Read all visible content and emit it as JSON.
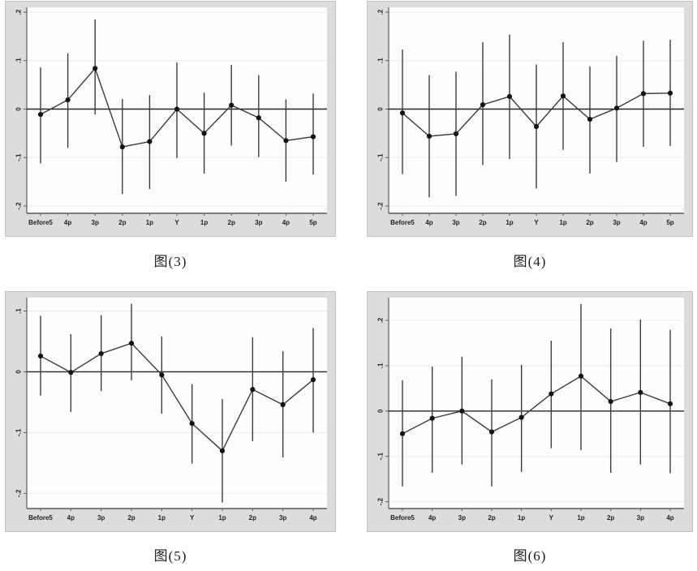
{
  "colors": {
    "panel_bg": "#dcdcdc",
    "plot_bg": "#fdfdfd",
    "gridline": "#ebebeb",
    "axis": "#5a5a5a",
    "zero_line": "#262626",
    "series": "#3c3c3c",
    "marker": "#131313",
    "tick_label": "#222222"
  },
  "chart_data": [
    {
      "id": "figure-3",
      "caption": "图(3)",
      "type": "line",
      "subtype": "point-estimates-with-confidence-intervals",
      "x_categories": [
        "Before5",
        "4p",
        "3p",
        "2p",
        "1p",
        "Y",
        "1p",
        "2p",
        "3p",
        "4p",
        "5p"
      ],
      "series": [
        {
          "name": "estimate",
          "values": [
            -0.011,
            0.019,
            0.084,
            -0.078,
            -0.067,
            0.0,
            -0.05,
            0.008,
            -0.018,
            -0.065,
            -0.057
          ]
        }
      ],
      "ci_low": [
        -0.112,
        -0.08,
        -0.011,
        -0.175,
        -0.165,
        -0.101,
        -0.133,
        -0.075,
        -0.099,
        -0.15,
        -0.135
      ],
      "ci_high": [
        0.086,
        0.115,
        0.185,
        0.021,
        0.029,
        0.096,
        0.034,
        0.091,
        0.07,
        0.02,
        0.032
      ],
      "ytick_values": [
        0.2,
        0.1,
        0,
        -0.1,
        -0.2
      ],
      "ytick_labels": [
        ".2",
        ".1",
        "0",
        "-.1",
        "-.2"
      ],
      "ylim": [
        -0.215,
        0.21
      ],
      "zero_line": 0,
      "grid": "horizontal",
      "legend": "none"
    },
    {
      "id": "figure-4",
      "caption": "图(4)",
      "type": "line",
      "subtype": "point-estimates-with-confidence-intervals",
      "x_categories": [
        "Before5",
        "4p",
        "3p",
        "2p",
        "1p",
        "Y",
        "1p",
        "2p",
        "3p",
        "4p",
        "5p"
      ],
      "series": [
        {
          "name": "estimate",
          "values": [
            -0.008,
            -0.056,
            -0.051,
            0.009,
            0.026,
            -0.036,
            0.027,
            -0.021,
            0.002,
            0.032,
            0.033
          ]
        }
      ],
      "ci_low": [
        -0.134,
        -0.182,
        -0.179,
        -0.115,
        -0.103,
        -0.164,
        -0.084,
        -0.133,
        -0.109,
        -0.078,
        -0.076
      ],
      "ci_high": [
        0.123,
        0.07,
        0.077,
        0.138,
        0.154,
        0.092,
        0.138,
        0.088,
        0.11,
        0.141,
        0.143
      ],
      "ytick_values": [
        0.2,
        0.1,
        0,
        -0.1,
        -0.2
      ],
      "ytick_labels": [
        ".2",
        ".1",
        "0",
        "-.1",
        "-.2"
      ],
      "ylim": [
        -0.215,
        0.21
      ],
      "zero_line": 0,
      "grid": "horizontal",
      "legend": "none"
    },
    {
      "id": "figure-5",
      "caption": "图(5)",
      "type": "line",
      "subtype": "point-estimates-with-confidence-intervals",
      "x_categories": [
        "Before5",
        "4p",
        "3p",
        "2p",
        "1p",
        "Y",
        "1p",
        "2p",
        "3p",
        "4p"
      ],
      "series": [
        {
          "name": "estimate",
          "values": [
            0.026,
            -0.001,
            0.03,
            0.047,
            -0.005,
            -0.085,
            -0.13,
            -0.029,
            -0.054,
            -0.013
          ]
        }
      ],
      "ci_low": [
        -0.039,
        -0.066,
        -0.032,
        -0.014,
        -0.069,
        -0.151,
        -0.215,
        -0.114,
        -0.141,
        -0.1
      ],
      "ci_high": [
        0.092,
        0.062,
        0.093,
        0.112,
        0.058,
        -0.02,
        -0.045,
        0.057,
        0.034,
        0.072
      ],
      "ytick_values": [
        0.1,
        0,
        -0.1,
        -0.2
      ],
      "ytick_labels": [
        ".1",
        "0",
        "-.1",
        "-.2"
      ],
      "ylim": [
        -0.225,
        0.122
      ],
      "zero_line": 0,
      "grid": "horizontal",
      "legend": "none"
    },
    {
      "id": "figure-6",
      "caption": "图(6)",
      "type": "line",
      "subtype": "point-estimates-with-confidence-intervals",
      "x_categories": [
        "Before5",
        "4p",
        "3p",
        "2p",
        "1p",
        "Y",
        "1p",
        "2p",
        "3p",
        "4p"
      ],
      "series": [
        {
          "name": "estimate",
          "values": [
            -0.05,
            -0.016,
            0.0,
            -0.046,
            -0.014,
            0.038,
            0.077,
            0.021,
            0.041,
            0.016
          ]
        }
      ],
      "ci_low": [
        -0.166,
        -0.136,
        -0.118,
        -0.166,
        -0.134,
        -0.082,
        -0.086,
        -0.136,
        -0.118,
        -0.137
      ],
      "ci_high": [
        0.068,
        0.098,
        0.12,
        0.07,
        0.102,
        0.155,
        0.236,
        0.182,
        0.202,
        0.179
      ],
      "ytick_values": [
        0.2,
        0.1,
        0,
        -0.1,
        -0.2
      ],
      "ytick_labels": [
        ".2",
        ".1",
        "0",
        "-.1",
        "-.2"
      ],
      "ylim": [
        -0.215,
        0.25
      ],
      "zero_line": 0,
      "grid": "horizontal",
      "legend": "none"
    }
  ]
}
